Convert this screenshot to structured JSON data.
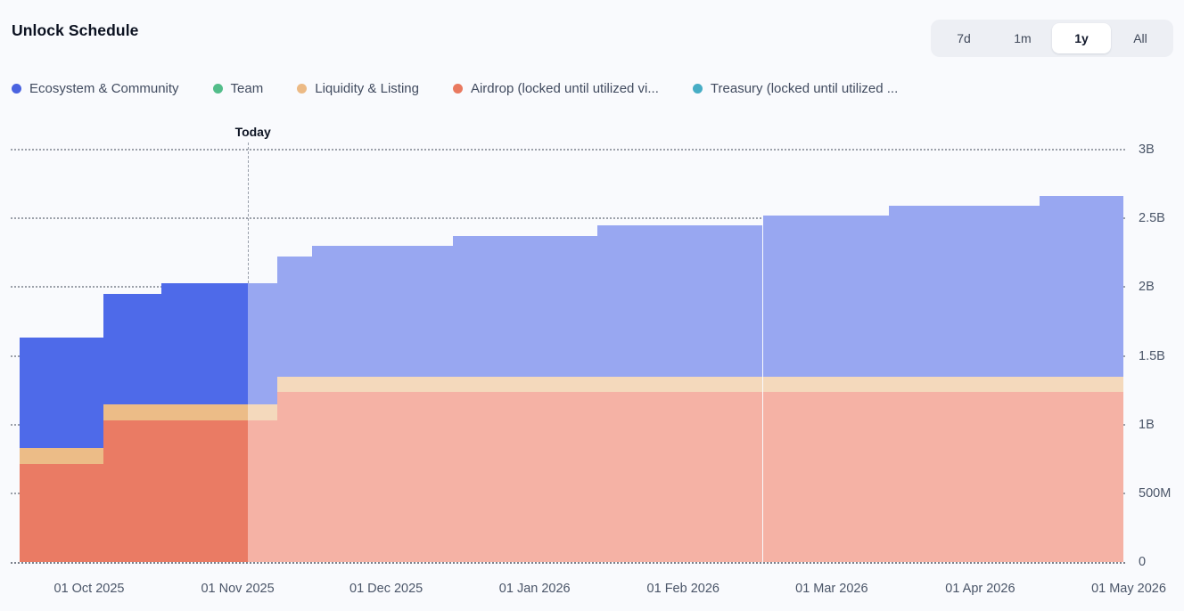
{
  "header": {
    "title": "Unlock Schedule"
  },
  "range_selector": {
    "options": [
      "7d",
      "1m",
      "1y",
      "All"
    ],
    "selected": "1y"
  },
  "legend": [
    {
      "label": "Ecosystem & Community",
      "color": "#4a63e0",
      "series_key": "ecosystem"
    },
    {
      "label": "Team",
      "color": "#53bd8a",
      "series_key": "team"
    },
    {
      "label": "Liquidity & Listing",
      "color": "#ecba85",
      "series_key": "liquidity"
    },
    {
      "label": "Airdrop (locked until utilized vi...",
      "color": "#e9795f",
      "series_key": "airdrop"
    },
    {
      "label": "Treasury (locked until utilized ...",
      "color": "#47adc5",
      "series_key": "treasury"
    }
  ],
  "chart_data": {
    "type": "area",
    "subtype": "stacked-step-cumulative",
    "title": "Unlock Schedule",
    "ylim": [
      0,
      3000000000
    ],
    "grid": "dotted-horizontal",
    "legend_position": "top",
    "y_ticks": [
      {
        "value": 0,
        "label": "0"
      },
      {
        "value": 500000000,
        "label": "500M"
      },
      {
        "value": 1000000000,
        "label": "1B"
      },
      {
        "value": 1500000000,
        "label": "1.5B"
      },
      {
        "value": 2000000000,
        "label": "2B"
      },
      {
        "value": 2500000000,
        "label": "2.5B"
      },
      {
        "value": 3000000000,
        "label": "3B"
      }
    ],
    "x_ticks": [
      "01 Oct 2025",
      "01 Nov 2025",
      "01 Dec 2025",
      "01 Jan 2026",
      "01 Feb 2026",
      "01 Mar 2026",
      "01 Apr 2026",
      "01 May 2026"
    ],
    "x_start": "2025-09-17",
    "x_end": "2026-04-30",
    "today": {
      "date": "2025-11-03",
      "label": "Today"
    },
    "series_order_bottom_to_top": [
      "airdrop",
      "liquidity",
      "ecosystem"
    ],
    "segments": [
      {
        "start": "2025-09-17",
        "airdrop": 710000000,
        "liquidity": 120000000,
        "ecosystem": 800000000,
        "team": 0,
        "treasury": 0
      },
      {
        "start": "2025-10-04",
        "airdrop": 1030000000,
        "liquidity": 120000000,
        "ecosystem": 800000000,
        "team": 0,
        "treasury": 0
      },
      {
        "start": "2025-10-16",
        "airdrop": 1030000000,
        "liquidity": 120000000,
        "ecosystem": 880000000,
        "team": 0,
        "treasury": 0
      },
      {
        "start": "2025-11-09",
        "airdrop": 1240000000,
        "liquidity": 110000000,
        "ecosystem": 870000000,
        "team": 0,
        "treasury": 0
      },
      {
        "start": "2025-11-16",
        "airdrop": 1240000000,
        "liquidity": 110000000,
        "ecosystem": 950000000,
        "team": 0,
        "treasury": 0
      },
      {
        "start": "2025-12-15",
        "airdrop": 1240000000,
        "liquidity": 110000000,
        "ecosystem": 1020000000,
        "team": 0,
        "treasury": 0
      },
      {
        "start": "2026-01-14",
        "airdrop": 1240000000,
        "liquidity": 110000000,
        "ecosystem": 1100000000,
        "team": 0,
        "treasury": 0
      },
      {
        "start": "2026-02-16",
        "airdrop": 1240000000,
        "liquidity": 110000000,
        "ecosystem": 1170000000,
        "team": 0,
        "treasury": 0
      },
      {
        "start": "2026-03-13",
        "airdrop": 1240000000,
        "liquidity": 110000000,
        "ecosystem": 1240000000,
        "team": 0,
        "treasury": 0
      },
      {
        "start": "2026-04-13",
        "airdrop": 1240000000,
        "liquidity": 110000000,
        "ecosystem": 1310000000,
        "team": 0,
        "treasury": 0
      }
    ],
    "palette": {
      "past": {
        "ecosystem": "#4e6ae9",
        "liquidity": "#ecbc87",
        "airdrop": "#ea7b64"
      },
      "future": {
        "ecosystem": "#98a7f1",
        "liquidity": "#f4d9bc",
        "airdrop": "#f5b2a5"
      }
    }
  }
}
